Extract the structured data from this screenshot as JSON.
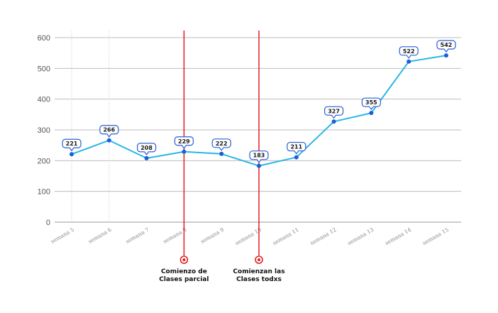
{
  "chart_data": {
    "type": "line",
    "categories": [
      "semana 5",
      "semana 6",
      "semana 7",
      "semana 8",
      "semana 9",
      "semana 10",
      "semana 11",
      "semana 12",
      "semana 13",
      "semana 14",
      "semana 15"
    ],
    "values": [
      221,
      266,
      208,
      229,
      222,
      183,
      211,
      327,
      355,
      522,
      542
    ],
    "y_ticks": [
      0,
      100,
      200,
      300,
      400,
      500,
      600
    ],
    "ylim": [
      0,
      600
    ],
    "grid": true,
    "title": "",
    "xlabel": "",
    "ylabel": "",
    "line_color": "#29b6e6",
    "marker_color": "#1a5fd6",
    "label_border_color": "#2a5bd7",
    "annotations": [
      {
        "category": "semana 8",
        "lines": [
          "Comienzo de",
          "Clases parcial"
        ],
        "color": "#e02020"
      },
      {
        "category": "semana 10",
        "lines": [
          "Comienzan las",
          "Clases todxs"
        ],
        "color": "#e02020"
      }
    ]
  }
}
